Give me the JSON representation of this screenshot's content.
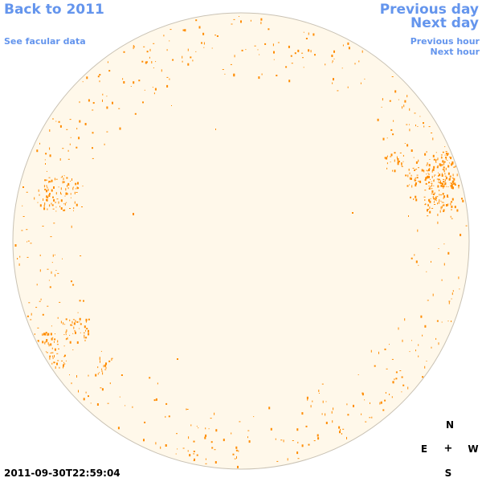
{
  "nav": {
    "back_label": "Back to 2011",
    "facular_label": "See facular data",
    "prev_day_label": "Previous day",
    "next_day_label": "Next day",
    "prev_hour_label": "Previous hour",
    "next_hour_label": "Next hour"
  },
  "compass": {
    "north": "N",
    "east": "E",
    "center": "+",
    "west": "W",
    "south": "S"
  },
  "timestamp": "2011-09-30T22:59:04",
  "colors": {
    "link": "#6495ed",
    "disk_fill": "#fff8ea",
    "disk_outline": "#c9c2b4",
    "facula": "#ff8c00"
  }
}
